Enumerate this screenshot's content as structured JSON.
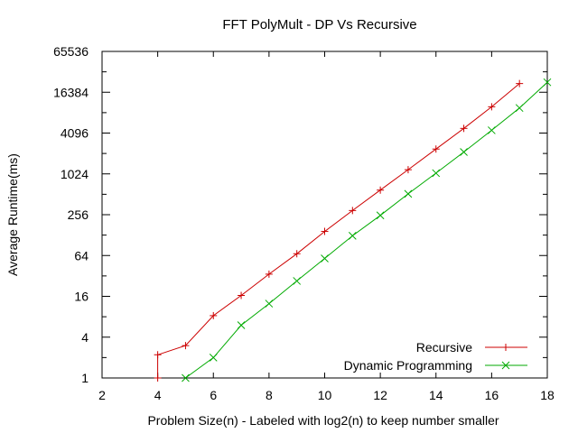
{
  "chart_data": {
    "type": "line",
    "title": "FFT PolyMult - DP Vs Recursive",
    "xlabel": "Problem Size(n) - Labeled with log2(n) to keep number smaller",
    "ylabel": "Average Runtime(ms)",
    "xlim": [
      2,
      18
    ],
    "ylim": [
      1,
      65536
    ],
    "yscale": "log2",
    "xticks": [
      2,
      4,
      6,
      8,
      10,
      12,
      14,
      16,
      18
    ],
    "yticks": [
      1,
      4,
      16,
      64,
      256,
      1024,
      4096,
      16384,
      65536
    ],
    "ytick_labels": [
      "1",
      "4",
      "16",
      "64",
      "256",
      "1024",
      "4096",
      "16384",
      "65536"
    ],
    "grid": false,
    "legend_position": "bottom-right",
    "series": [
      {
        "name": "Recursive",
        "color": "#cc0000",
        "marker": "plus",
        "x": [
          4,
          4,
          5,
          6,
          7,
          8,
          9,
          10,
          11,
          12,
          13,
          14,
          15,
          16,
          17
        ],
        "y": [
          1,
          2.2,
          3.0,
          8.3,
          16.5,
          34,
          68,
          145,
          295,
          590,
          1180,
          2380,
          4800,
          10000,
          22000
        ]
      },
      {
        "name": "Dynamic Programming",
        "color": "#00aa00",
        "marker": "cross",
        "x": [
          5,
          6,
          7,
          8,
          9,
          10,
          11,
          12,
          13,
          14,
          15,
          16,
          17,
          18
        ],
        "y": [
          1,
          2.0,
          6.0,
          12.5,
          27,
          58,
          125,
          250,
          520,
          1050,
          2150,
          4500,
          9600,
          23000
        ]
      }
    ]
  }
}
